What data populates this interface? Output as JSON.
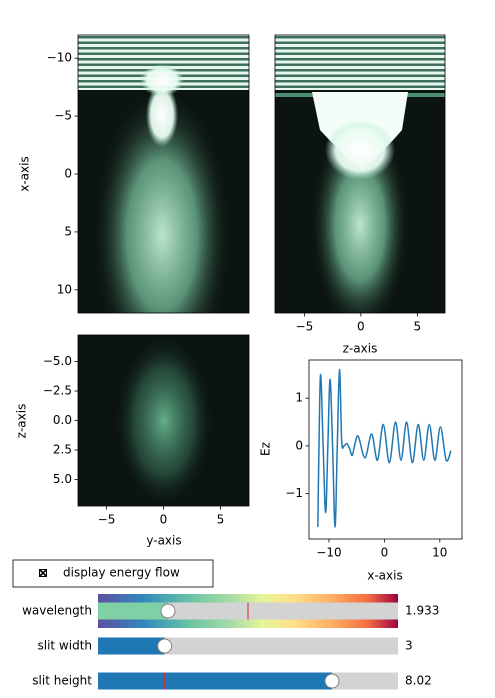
{
  "chart_data": [
    {
      "type": "heatmap",
      "ylabel": "x-axis",
      "ylim": [
        12,
        -12
      ],
      "yticks": [
        {
          "value": -10,
          "label": "−10"
        },
        {
          "value": -5,
          "label": "−5"
        },
        0,
        5,
        10
      ]
    },
    {
      "type": "heatmap",
      "xlabel": "z-axis",
      "xlim": [
        -7.6,
        7.45
      ],
      "xticks": [
        {
          "value": -5,
          "label": "−5"
        },
        0,
        5
      ]
    },
    {
      "type": "heatmap",
      "xlabel": "y-axis",
      "ylabel": "z-axis",
      "xlim": [
        -7.5,
        7.5
      ],
      "ylim": [
        7.25,
        -7.25
      ],
      "xticks": [
        {
          "value": -5,
          "label": "−5"
        },
        0,
        5
      ],
      "yticks": [
        {
          "value": -5,
          "label": "−5.0"
        },
        {
          "value": -2.5,
          "label": "−2.5"
        },
        {
          "value": 0,
          "label": "0.0"
        },
        2.5,
        {
          "value": 5,
          "label": "5.0"
        }
      ]
    },
    {
      "type": "line",
      "xlabel": "x-axis",
      "ylabel": "Ez",
      "xlim": [
        -13.6,
        14
      ],
      "ylim": [
        -1.95,
        1.8
      ],
      "xticks": [
        {
          "value": -10,
          "label": "−10"
        },
        0,
        10
      ],
      "yticks": [
        {
          "value": -1,
          "label": "−1"
        },
        0,
        1
      ],
      "series": [
        {
          "color": "#1f77b4",
          "x": [
            -12,
            -11.8,
            -11.5,
            -11.05,
            -10.6,
            -10.2,
            -9.8,
            -9.35,
            -8.9,
            -8.5,
            -8.1,
            -7.7,
            -7.3,
            -6.8,
            -6.3,
            -5.8,
            -5.3,
            -4.7,
            -3.5,
            -2.3,
            -1.25,
            -0.2,
            0.9,
            2.0,
            3.0,
            4.0,
            5.05,
            6.1,
            7.1,
            8.1,
            9.1,
            10.1,
            11.15,
            12
          ],
          "values": [
            -1.7,
            0,
            1.5,
            0,
            -1.4,
            0,
            1.4,
            0,
            -1.7,
            0,
            1.6,
            0.1,
            0,
            0.05,
            -0.05,
            -0.2,
            0.05,
            0.2,
            -0.25,
            0.25,
            -0.3,
            0.45,
            -0.35,
            0.5,
            -0.3,
            0.5,
            -0.35,
            0.45,
            -0.3,
            0.45,
            -0.3,
            0.4,
            -0.3,
            -0.1
          ]
        }
      ]
    }
  ],
  "checkbox": {
    "label": "display energy flow",
    "checked": true
  },
  "sliders": [
    {
      "label": "wavelength",
      "value": 1.933,
      "range": [
        1,
        5
      ],
      "init": 3,
      "colormap": true
    },
    {
      "label": "slit width",
      "value": 3,
      "range": [
        1,
        10
      ]
    },
    {
      "label": "slit height",
      "value": 8.02,
      "range": [
        1,
        10
      ],
      "init": 3
    }
  ]
}
